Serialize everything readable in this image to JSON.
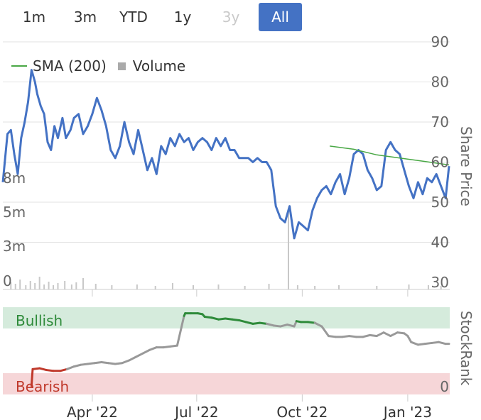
{
  "range_selector": {
    "buttons": [
      {
        "label": "1m",
        "state": "normal"
      },
      {
        "label": "3m",
        "state": "normal"
      },
      {
        "label": "YTD",
        "state": "normal"
      },
      {
        "label": "1y",
        "state": "normal"
      },
      {
        "label": "3y",
        "state": "disabled"
      },
      {
        "label": "All",
        "state": "active"
      }
    ],
    "active_color": "#4472c4"
  },
  "legend": {
    "sma_label": "SMA (200)",
    "volume_label": "Volume"
  },
  "colors": {
    "price": "#4472c4",
    "sma": "#49a845",
    "volume": "#c8c8c8",
    "bullish_zone": "#d5ebdc",
    "bearish_zone": "#f6d6d8",
    "rank_neutral": "#999999",
    "rank_bullish": "#2e8b3a",
    "rank_bearish": "#c0392b"
  },
  "chart_data": [
    {
      "type": "line",
      "title": "",
      "ylabel": "Share Price",
      "ylim": [
        30,
        90
      ],
      "yticks": [
        "90",
        "80",
        "70",
        "60",
        "50",
        "40",
        "30"
      ],
      "volume_axis_ticks": [
        "8m",
        "5m",
        "3m",
        "0"
      ],
      "xticks": [
        "Apr '22",
        "Jul '22",
        "Oct '22",
        "Jan '23"
      ],
      "grid": true,
      "legend_position": "top-left",
      "series": [
        {
          "name": "",
          "x": [
            "2022-01-13",
            "2022-01-17",
            "2022-01-20",
            "2022-01-23",
            "2022-01-26",
            "2022-01-29",
            "2022-02-01",
            "2022-02-04",
            "2022-02-07",
            "2022-02-10",
            "2022-02-12",
            "2022-02-15",
            "2022-02-18",
            "2022-02-21",
            "2022-02-24",
            "2022-02-27",
            "2022-03-02",
            "2022-03-06",
            "2022-03-09",
            "2022-03-13",
            "2022-03-16",
            "2022-03-20",
            "2022-03-24",
            "2022-03-28",
            "2022-04-01",
            "2022-04-05",
            "2022-04-09",
            "2022-04-13",
            "2022-04-17",
            "2022-04-21",
            "2022-04-25",
            "2022-04-29",
            "2022-05-03",
            "2022-05-07",
            "2022-05-11",
            "2022-05-15",
            "2022-05-19",
            "2022-05-23",
            "2022-05-27",
            "2022-05-31",
            "2022-06-04",
            "2022-06-08",
            "2022-06-12",
            "2022-06-16",
            "2022-06-20",
            "2022-06-24",
            "2022-06-28",
            "2022-07-02",
            "2022-07-06",
            "2022-07-10",
            "2022-07-14",
            "2022-07-18",
            "2022-07-22",
            "2022-07-26",
            "2022-07-30",
            "2022-08-03",
            "2022-08-07",
            "2022-08-11",
            "2022-08-15",
            "2022-08-19",
            "2022-08-23",
            "2022-08-27",
            "2022-08-31",
            "2022-09-04",
            "2022-09-08",
            "2022-09-12",
            "2022-09-16",
            "2022-09-20",
            "2022-09-24",
            "2022-09-28",
            "2022-10-02",
            "2022-10-06",
            "2022-10-10",
            "2022-10-14",
            "2022-10-18",
            "2022-10-22",
            "2022-10-26",
            "2022-10-30",
            "2022-11-03",
            "2022-11-07",
            "2022-11-11",
            "2022-11-15",
            "2022-11-19",
            "2022-11-23",
            "2022-11-27",
            "2022-12-01",
            "2022-12-05",
            "2022-12-09",
            "2022-12-13",
            "2022-12-17",
            "2022-12-21",
            "2022-12-25",
            "2022-12-29",
            "2023-01-02",
            "2023-01-06",
            "2023-01-10",
            "2023-01-14",
            "2023-01-18",
            "2023-01-22",
            "2023-01-26",
            "2023-01-30",
            "2023-02-03",
            "2023-02-06"
          ],
          "values": [
            55,
            67,
            68,
            62,
            57,
            66,
            70,
            75,
            83,
            80,
            77,
            74,
            72,
            65,
            63,
            69,
            66,
            71,
            66,
            68,
            71,
            72,
            67,
            69,
            72,
            76,
            73,
            69,
            63,
            61,
            64,
            70,
            65,
            62,
            68,
            63,
            58,
            61,
            57,
            64,
            62,
            66,
            64,
            67,
            65,
            66,
            63,
            65,
            66,
            65,
            63,
            66,
            64,
            66,
            63,
            63,
            61,
            61,
            61,
            60,
            61,
            60,
            60,
            58,
            49,
            46,
            45,
            49,
            41,
            45,
            44,
            43,
            48,
            51,
            53,
            54,
            52,
            55,
            57,
            52,
            56,
            62,
            63,
            62,
            58,
            56,
            53,
            54,
            63,
            65,
            63,
            62,
            58,
            54,
            51,
            55,
            52,
            56,
            55,
            57,
            54,
            51,
            59
          ]
        }
      ]
    },
    {
      "type": "line",
      "title": "",
      "ylabel": "StockRank",
      "ylim": [
        0,
        100
      ],
      "yticks": [
        "0"
      ],
      "zones": [
        "Bullish",
        "Bearish"
      ],
      "series": [
        {
          "name": "",
          "x": [
            "2022-02-07",
            "2022-02-08",
            "2022-02-14",
            "2022-02-20",
            "2022-02-26",
            "2022-03-04",
            "2022-03-10",
            "2022-03-16",
            "2022-03-22",
            "2022-03-28",
            "2022-04-03",
            "2022-04-09",
            "2022-04-15",
            "2022-04-21",
            "2022-04-27",
            "2022-05-03",
            "2022-05-09",
            "2022-05-15",
            "2022-05-21",
            "2022-05-27",
            "2022-06-02",
            "2022-06-08",
            "2022-06-14",
            "2022-06-20",
            "2022-06-21",
            "2022-06-26",
            "2022-07-02",
            "2022-07-06",
            "2022-07-08",
            "2022-07-14",
            "2022-07-20",
            "2022-07-26",
            "2022-08-01",
            "2022-08-07",
            "2022-08-13",
            "2022-08-19",
            "2022-08-25",
            "2022-08-31",
            "2022-09-06",
            "2022-09-12",
            "2022-09-18",
            "2022-09-24",
            "2022-09-26",
            "2022-09-30",
            "2022-10-06",
            "2022-10-12",
            "2022-10-18",
            "2022-10-24",
            "2022-10-30",
            "2022-11-05",
            "2022-11-11",
            "2022-11-17",
            "2022-11-23",
            "2022-11-29",
            "2022-12-05",
            "2022-12-11",
            "2022-12-17",
            "2022-12-23",
            "2022-12-29",
            "2023-01-01",
            "2023-01-04",
            "2023-01-10",
            "2023-01-16",
            "2023-01-22",
            "2023-01-28",
            "2023-02-03",
            "2023-02-06"
          ],
          "values": [
            10,
            29,
            30,
            28,
            27,
            27,
            29,
            32,
            34,
            35,
            36,
            37,
            36,
            35,
            36,
            39,
            43,
            47,
            51,
            54,
            54,
            55,
            56,
            90,
            93,
            93,
            93,
            92,
            89,
            88,
            86,
            87,
            86,
            85,
            83,
            81,
            82,
            81,
            79,
            78,
            80,
            78,
            84,
            83,
            83,
            82,
            78,
            67,
            66,
            66,
            67,
            66,
            66,
            68,
            67,
            71,
            67,
            71,
            70,
            67,
            60,
            57,
            58,
            59,
            60,
            58,
            58
          ]
        }
      ]
    }
  ]
}
